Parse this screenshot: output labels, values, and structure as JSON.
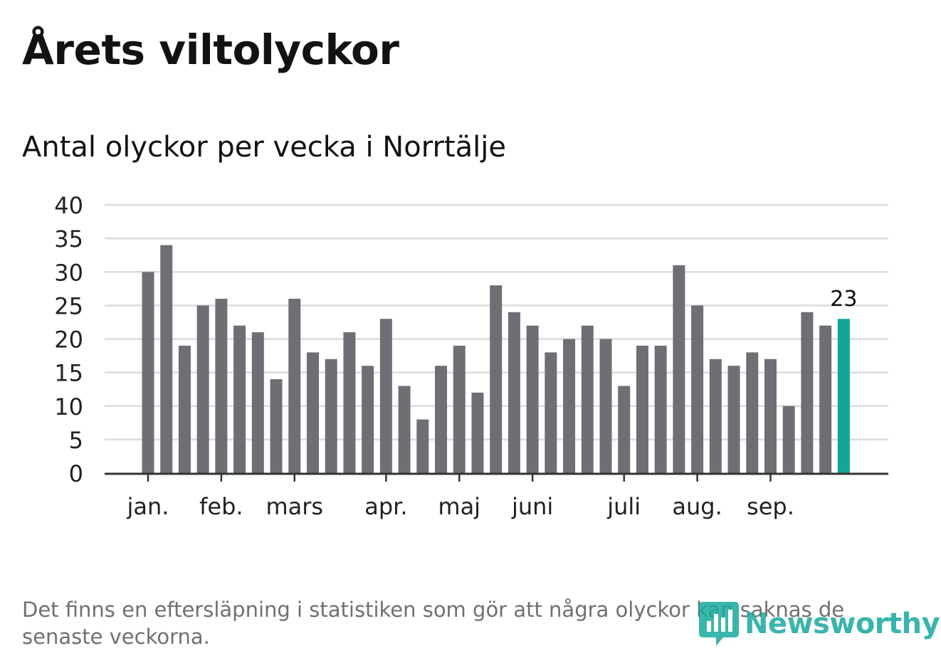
{
  "title": "Årets viltolyckor",
  "subtitle": "Antal olyckor per vecka i Norrtälje",
  "footnote": "Det finns en eftersläpning i statistiken som gör att några olyckor kan saknas de senaste veckorna.",
  "logo": {
    "text": "Newsworthy",
    "icon": "newsworthy-chart-icon"
  },
  "colors": {
    "bar": "#6f6e74",
    "highlight": "#10a69a",
    "grid": "#dcdcdc",
    "axis": "#333333",
    "text": "#222222"
  },
  "chart_data": {
    "type": "bar",
    "title": "Antal olyckor per vecka i Norrtälje",
    "ylim": [
      0,
      40
    ],
    "yticks": [
      0,
      5,
      10,
      15,
      20,
      25,
      30,
      35,
      40
    ],
    "grid": true,
    "x_month_labels": [
      {
        "label": "jan.",
        "week_index": 0
      },
      {
        "label": "feb.",
        "week_index": 4
      },
      {
        "label": "mars",
        "week_index": 8
      },
      {
        "label": "apr.",
        "week_index": 13
      },
      {
        "label": "maj",
        "week_index": 17
      },
      {
        "label": "juni",
        "week_index": 21
      },
      {
        "label": "juli",
        "week_index": 26
      },
      {
        "label": "aug.",
        "week_index": 30
      },
      {
        "label": "sep.",
        "week_index": 34
      }
    ],
    "values": [
      30,
      34,
      19,
      25,
      26,
      22,
      21,
      14,
      26,
      18,
      17,
      21,
      16,
      23,
      13,
      8,
      16,
      19,
      12,
      28,
      24,
      22,
      18,
      20,
      22,
      20,
      13,
      19,
      19,
      31,
      25,
      17,
      16,
      18,
      17,
      10,
      24,
      22,
      23
    ],
    "highlight_index": 38,
    "highlight_label": "23"
  }
}
